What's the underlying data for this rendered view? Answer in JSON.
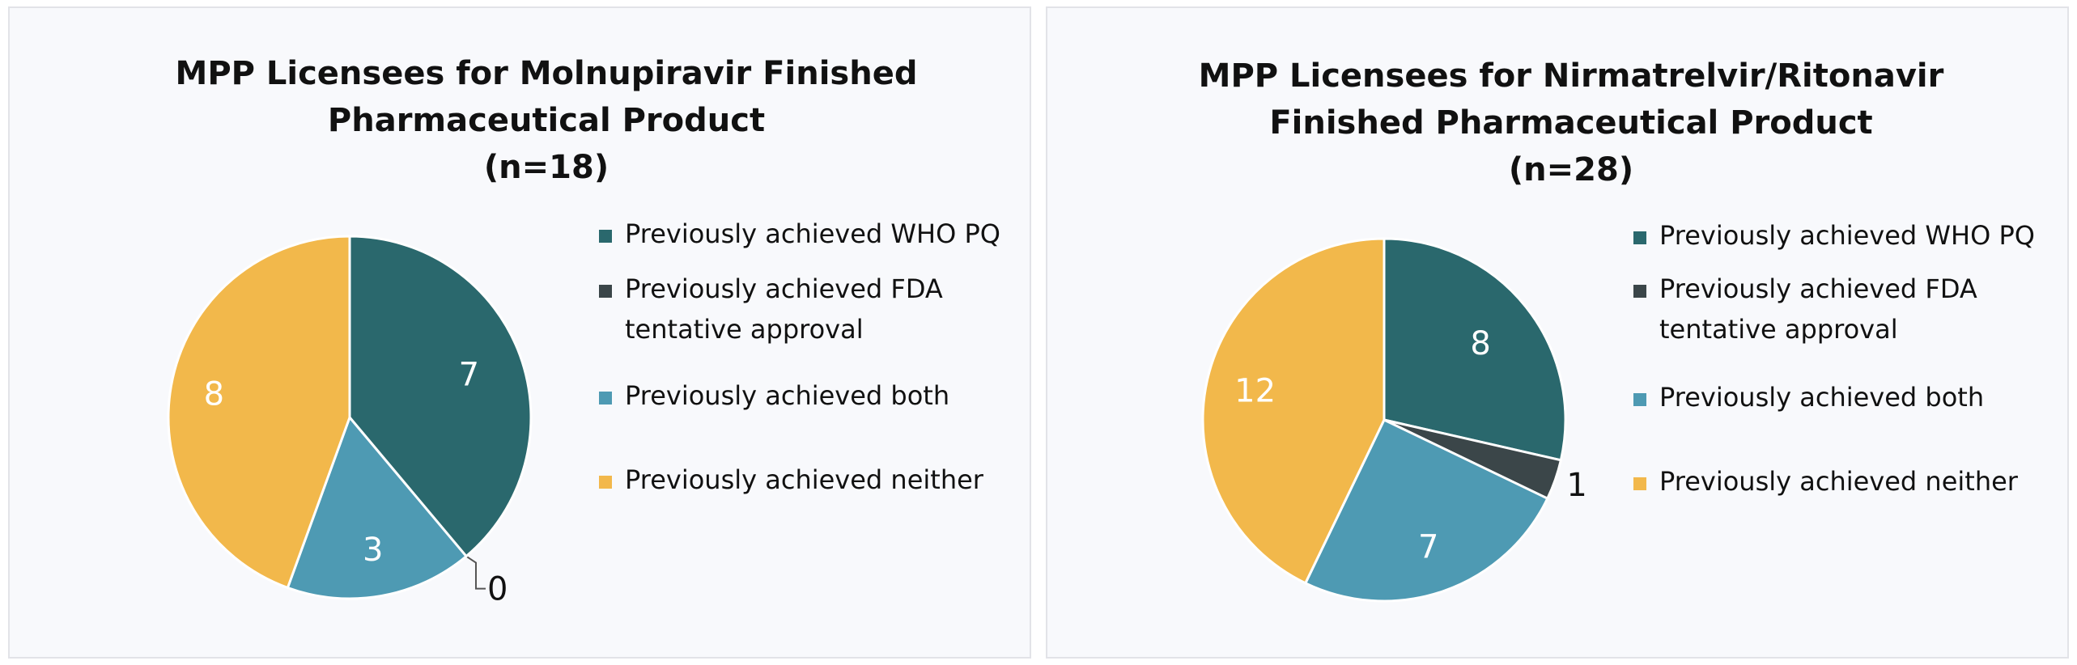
{
  "chart_data": [
    {
      "type": "pie",
      "title": [
        "MPP Licensees for Molnupiravir Finished",
        "Pharmaceutical Product",
        "(n=18)"
      ],
      "categories": [
        "Previously achieved WHO PQ",
        "Previously achieved FDA tentative approval",
        "Previously achieved both",
        "Previously achieved neither"
      ],
      "legend_labels": [
        [
          "Previously achieved WHO PQ"
        ],
        [
          "Previously achieved FDA",
          "tentative approval"
        ],
        [
          "Previously achieved both"
        ],
        [
          "Previously achieved neither"
        ]
      ],
      "values": [
        7,
        0,
        3,
        8
      ],
      "colors": [
        "#2a686d",
        "#3b4649",
        "#4e9ab3",
        "#f2b84b"
      ],
      "legend_position": "right"
    },
    {
      "type": "pie",
      "title": [
        "MPP Licensees for Nirmatrelvir/Ritonavir",
        "Finished Pharmaceutical Product",
        "(n=28)"
      ],
      "categories": [
        "Previously achieved WHO PQ",
        "Previously achieved FDA tentative approval",
        "Previously achieved both",
        "Previously achieved neither"
      ],
      "legend_labels": [
        [
          "Previously achieved WHO PQ"
        ],
        [
          "Previously achieved FDA",
          "tentative approval"
        ],
        [
          "Previously achieved both"
        ],
        [
          "Previously achieved neither"
        ]
      ],
      "values": [
        8,
        1,
        7,
        12
      ],
      "colors": [
        "#2a686d",
        "#3b4649",
        "#4e9ab3",
        "#f2b84b"
      ],
      "legend_position": "right"
    }
  ]
}
